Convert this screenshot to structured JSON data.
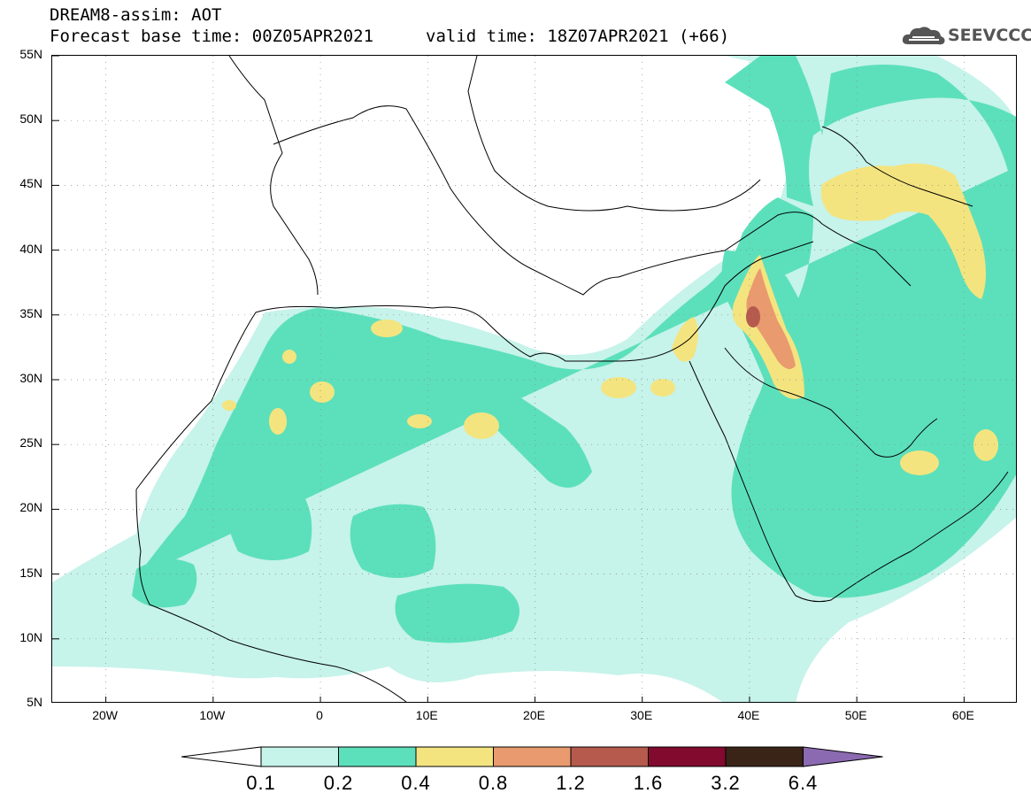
{
  "header": {
    "title": "DREAM8-assim: AOT",
    "base_time": "Forecast base time: 00Z05APR2021",
    "valid_time": "valid time: 18Z07APR2021 (+66)"
  },
  "logo": {
    "text": "SEEVCCC",
    "icon": "cloud-logo-icon"
  },
  "map": {
    "lat_labels": [
      "55N",
      "50N",
      "45N",
      "40N",
      "35N",
      "30N",
      "25N",
      "20N",
      "15N",
      "10N",
      "5N"
    ],
    "lon_labels": [
      "20W",
      "10W",
      "0",
      "10E",
      "20E",
      "30E",
      "40E",
      "50E",
      "60E"
    ],
    "lat_range": [
      5,
      55
    ],
    "lon_range": [
      -25,
      65
    ]
  },
  "legend": {
    "levels": [
      "0.1",
      "0.2",
      "0.4",
      "0.8",
      "1.2",
      "1.6",
      "3.2",
      "6.4"
    ],
    "colors": [
      "#ffffff",
      "#c6f3ea",
      "#5ce0bb",
      "#f4e47f",
      "#e99a6e",
      "#b55a4d",
      "#820a2e",
      "#3a2417",
      "#8c6ab2"
    ]
  }
}
